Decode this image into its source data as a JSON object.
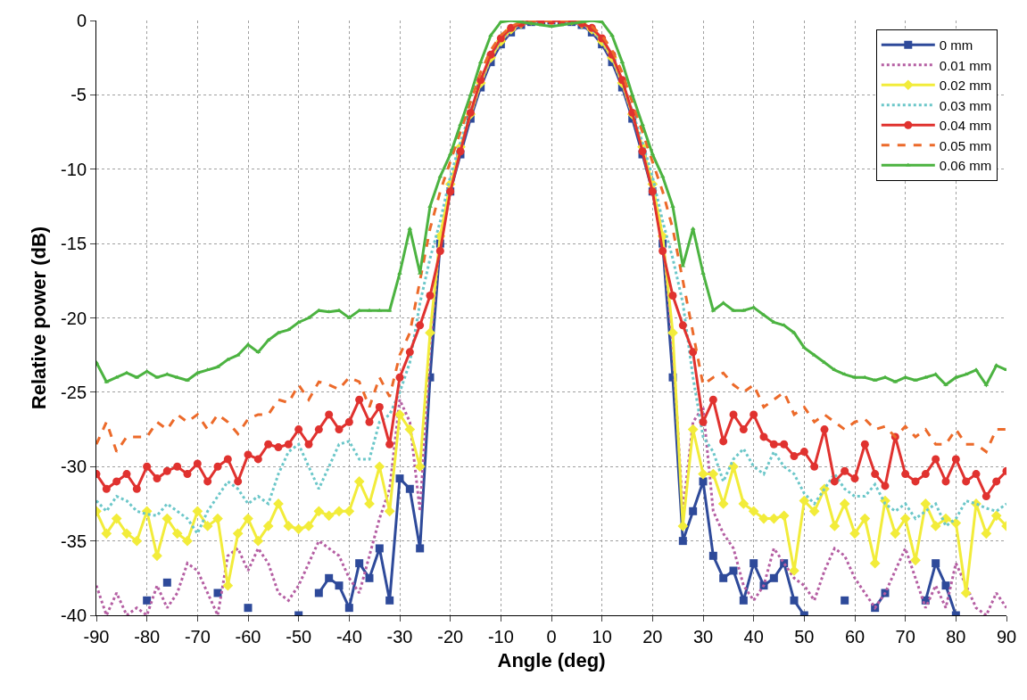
{
  "chart_data": {
    "type": "line",
    "xlabel": "Angle (deg)",
    "ylabel": "Relative power (dB)",
    "x": [
      -90,
      -88,
      -86,
      -84,
      -82,
      -80,
      -78,
      -76,
      -74,
      -72,
      -70,
      -68,
      -66,
      -64,
      -62,
      -60,
      -58,
      -56,
      -54,
      -52,
      -50,
      -48,
      -46,
      -44,
      -42,
      -40,
      -38,
      -36,
      -34,
      -32,
      -30,
      -28,
      -26,
      -24,
      -22,
      -20,
      -18,
      -16,
      -14,
      -12,
      -10,
      -8,
      -6,
      -4,
      -2,
      0,
      2,
      4,
      6,
      8,
      10,
      12,
      14,
      16,
      18,
      20,
      22,
      24,
      26,
      28,
      30,
      32,
      34,
      36,
      38,
      40,
      42,
      44,
      46,
      48,
      50,
      52,
      54,
      56,
      58,
      60,
      62,
      64,
      66,
      68,
      70,
      72,
      74,
      76,
      78,
      80,
      82,
      84,
      86,
      88,
      90
    ],
    "xlim": [
      -90,
      90
    ],
    "xticks": [
      -90,
      -80,
      -70,
      -60,
      -50,
      -40,
      -30,
      -20,
      -10,
      0,
      10,
      20,
      30,
      40,
      50,
      60,
      70,
      80,
      90
    ],
    "ylim": [
      -40,
      0
    ],
    "yticks": [
      -40,
      -35,
      -30,
      -25,
      -20,
      -15,
      -10,
      -5,
      0
    ],
    "grid": true,
    "legend": "top right",
    "series": [
      {
        "name": "0 mm",
        "color": "#2e4a9a",
        "marker": "square",
        "line_style": "solid",
        "values": [
          null,
          null,
          null,
          null,
          null,
          -39,
          null,
          -37.8,
          null,
          null,
          null,
          null,
          -38.5,
          null,
          null,
          -39.5,
          null,
          null,
          null,
          null,
          -40,
          null,
          -38.5,
          -37.5,
          -38,
          -39.5,
          -36.5,
          -37.5,
          -35.5,
          -39,
          -30.8,
          -31.5,
          -35.5,
          -24,
          -15,
          -11.5,
          -9,
          -6.6,
          -4.5,
          -2.8,
          -1.6,
          -0.8,
          -0.3,
          -0.1,
          0,
          0,
          0,
          -0.1,
          -0.3,
          -0.8,
          -1.6,
          -2.8,
          -4.5,
          -6.6,
          -9,
          -11.5,
          -15,
          -24,
          -35,
          -33,
          -31,
          -36,
          -37.5,
          -37,
          -39,
          -36.5,
          -38,
          -37.5,
          -36.5,
          -39,
          -40,
          null,
          null,
          null,
          -39,
          null,
          null,
          -39.5,
          -38.5,
          null,
          null,
          null,
          -39,
          -36.5,
          -38,
          -40,
          null,
          null,
          null,
          null,
          null
        ]
      },
      {
        "name": "0.01 mm",
        "color": "#b55fa3",
        "marker": "none",
        "line_style": "dotted",
        "values": [
          -38,
          -40,
          -38.5,
          -40,
          -39.5,
          -40,
          -38,
          -39.5,
          -38.5,
          -36.5,
          -37,
          -38.5,
          -40,
          -36,
          -35.5,
          -37,
          -35.5,
          -36.5,
          -38.5,
          -39,
          -38,
          -36.5,
          -35,
          -35.5,
          -36,
          -37.5,
          -38.5,
          -36,
          -33.5,
          -31.5,
          -25.5,
          -27,
          -33,
          -22,
          -14.5,
          -11,
          -8.6,
          -6.4,
          -4.3,
          -2.6,
          -1.5,
          -0.7,
          -0.3,
          -0.1,
          0,
          0,
          0,
          -0.1,
          -0.3,
          -0.7,
          -1.5,
          -2.6,
          -4.3,
          -6.4,
          -8.6,
          -11,
          -14.5,
          -22,
          -33,
          -27,
          -26,
          -33,
          -34.5,
          -35.5,
          -38,
          -39,
          -38,
          -35.5,
          -36.5,
          -37.5,
          -38,
          -39,
          -37,
          -35.5,
          -36,
          -37.5,
          -38.5,
          -39.5,
          -38.5,
          -37,
          -35.5,
          -37.5,
          -39.5,
          -38,
          -39.5,
          -36.5,
          -38,
          -39.5,
          -40,
          -38.5,
          -39.5
        ]
      },
      {
        "name": "0.02 mm",
        "color": "#f2ec3a",
        "marker": "diamond",
        "line_style": "solid",
        "values": [
          -33,
          -34.5,
          -33.5,
          -34.5,
          -35,
          -33,
          -36,
          -33.5,
          -34.5,
          -35,
          -33,
          -34,
          -33.5,
          -38,
          -34.5,
          -33.5,
          -35,
          -34,
          -32.5,
          -34,
          -34.2,
          -34,
          -33,
          -33.3,
          -33,
          -33,
          -31,
          -32.5,
          -30,
          -33,
          -26.5,
          -27.5,
          -30,
          -21,
          -14.5,
          -11,
          -8.5,
          -6.3,
          -4.2,
          -2.5,
          -1.4,
          -0.6,
          -0.2,
          0,
          0,
          0,
          0,
          0,
          -0.2,
          -0.6,
          -1.4,
          -2.5,
          -4.2,
          -6.3,
          -8.5,
          -11,
          -14.5,
          -21,
          -34,
          -27.5,
          -30.5,
          -30.5,
          -32.5,
          -30,
          -32.5,
          -33,
          -33.5,
          -33.5,
          -33.3,
          -37,
          -32.3,
          -33,
          -31.5,
          -34,
          -32.5,
          -34.5,
          -33.5,
          -36.5,
          -32.3,
          -34.5,
          -33.5,
          -36.3,
          -32.5,
          -34,
          -33.5,
          -33.8,
          -38.5,
          -32.5,
          -34.5,
          -33.3,
          -34
        ]
      },
      {
        "name": "0.03 mm",
        "color": "#6cc7c9",
        "marker": "none",
        "line_style": "dotted",
        "values": [
          -32.3,
          -33,
          -32,
          -32.3,
          -33,
          -33.2,
          -33.3,
          -32.5,
          -33,
          -33.5,
          -34.5,
          -33,
          -32,
          -31,
          -31.5,
          -32.5,
          -32,
          -32.5,
          -30.5,
          -29,
          -28.5,
          -30,
          -31.5,
          -30,
          -28.5,
          -28.3,
          -29.5,
          -29.5,
          -27,
          -26.5,
          -25,
          -23,
          -19,
          -16,
          -13.5,
          -10.5,
          -8.2,
          -6.1,
          -4.1,
          -2.4,
          -1.3,
          -0.6,
          -0.2,
          0,
          0,
          0,
          0,
          0,
          -0.2,
          -0.6,
          -1.3,
          -2.4,
          -4.1,
          -6.1,
          -8.2,
          -10.5,
          -13.5,
          -16,
          -19,
          -24,
          -28,
          -29,
          -31,
          -29.5,
          -28.8,
          -30,
          -30.5,
          -29,
          -30,
          -30.5,
          -31.8,
          -32.5,
          -31.5,
          -30.5,
          -31.5,
          -32,
          -32,
          -31.2,
          -32.5,
          -33,
          -32.5,
          -33.5,
          -33,
          -32.5,
          -34,
          -33.5,
          -32.3,
          -32.5,
          -32.8,
          -33,
          -32.5
        ]
      },
      {
        "name": "0.04 mm",
        "color": "#e0322f",
        "marker": "circle",
        "line_style": "solid",
        "values": [
          -30.5,
          -31.5,
          -31,
          -30.5,
          -31.5,
          -30,
          -30.8,
          -30.3,
          -30,
          -30.5,
          -29.8,
          -31,
          -30,
          -29.5,
          -31,
          -29.2,
          -29.5,
          -28.5,
          -28.7,
          -28.5,
          -27.5,
          -28.5,
          -27.5,
          -26.5,
          -27.5,
          -27,
          -25.5,
          -27,
          -26,
          -28.5,
          -24,
          -22.3,
          -20.5,
          -18.5,
          -15.5,
          -11.5,
          -8.8,
          -6.2,
          -4,
          -2.3,
          -1.2,
          -0.5,
          -0.2,
          0,
          0,
          0,
          0,
          0,
          -0.2,
          -0.5,
          -1.2,
          -2.3,
          -4,
          -6.2,
          -8.8,
          -11.5,
          -15.5,
          -18.5,
          -20.5,
          -22.3,
          -27,
          -25.5,
          -28.3,
          -26.5,
          -27.5,
          -26.5,
          -28,
          -28.5,
          -28.5,
          -29.3,
          -29,
          -30,
          -27.5,
          -31,
          -30.3,
          -30.8,
          -28.5,
          -30.5,
          -31.3,
          -28,
          -30.5,
          -31,
          -30.5,
          -29.5,
          -31,
          -29.5,
          -31,
          -30.5,
          -32,
          -31,
          -30.3
        ]
      },
      {
        "name": "0.05 mm",
        "color": "#ec6a2a",
        "marker": "none",
        "line_style": "dashed",
        "values": [
          -28.5,
          -27,
          -29,
          -28,
          -28,
          -28,
          -27,
          -27.5,
          -26.5,
          -27,
          -26.5,
          -27.5,
          -26.5,
          -27,
          -27.8,
          -26.8,
          -26.5,
          -26.5,
          -25.5,
          -25.7,
          -24.5,
          -25.5,
          -24.3,
          -24.5,
          -24.8,
          -24,
          -24.3,
          -26,
          -24,
          -25.3,
          -22.5,
          -21,
          -17.5,
          -14,
          -11.5,
          -9.5,
          -7.5,
          -5.5,
          -3.5,
          -2,
          -1,
          -0.4,
          -0.1,
          0,
          0,
          0,
          0,
          0,
          -0.1,
          -0.4,
          -1,
          -2,
          -3.5,
          -5.5,
          -7.5,
          -9.5,
          -11.5,
          -14,
          -17.5,
          -21,
          -24.5,
          -24,
          -23.7,
          -24.5,
          -25,
          -24.5,
          -26,
          -25.5,
          -25,
          -26.5,
          -26,
          -27,
          -26.5,
          -27,
          -27.5,
          -27,
          -26.8,
          -27.5,
          -27.3,
          -28,
          -27.3,
          -28,
          -27.5,
          -28.5,
          -28.5,
          -27.5,
          -28.5,
          -28.5,
          -29,
          -27.5,
          -27.5
        ]
      },
      {
        "name": "0.06 mm",
        "color": "#4cb341",
        "marker": "triangle",
        "line_style": "solid",
        "values": [
          -23,
          -24.3,
          -24,
          -23.7,
          -24,
          -23.6,
          -24,
          -23.8,
          -24,
          -24.2,
          -23.7,
          -23.5,
          -23.3,
          -22.8,
          -22.5,
          -21.8,
          -22.3,
          -21.5,
          -21,
          -20.8,
          -20.3,
          -20,
          -19.5,
          -19.6,
          -19.5,
          -20,
          -19.5,
          -19.5,
          -19.5,
          -19.5,
          -17,
          -14,
          -17,
          -12.5,
          -10.5,
          -9,
          -7,
          -5,
          -2.8,
          -1,
          -0.1,
          0,
          -0.1,
          -0.2,
          -0.3,
          -0.4,
          -0.3,
          -0.2,
          -0.1,
          0,
          -0.1,
          -1,
          -2.8,
          -5,
          -7,
          -9,
          -10.5,
          -12.5,
          -16.5,
          -14,
          -17,
          -19.5,
          -19,
          -19.5,
          -19.5,
          -19.3,
          -19.8,
          -20.3,
          -20.5,
          -21,
          -22,
          -22.5,
          -23,
          -23.5,
          -23.8,
          -24,
          -24,
          -24.2,
          -24,
          -24.3,
          -24,
          -24.2,
          -24,
          -23.8,
          -24.5,
          -24,
          -23.8,
          -23.5,
          -24.5,
          -23.2,
          -23.5
        ]
      }
    ]
  }
}
